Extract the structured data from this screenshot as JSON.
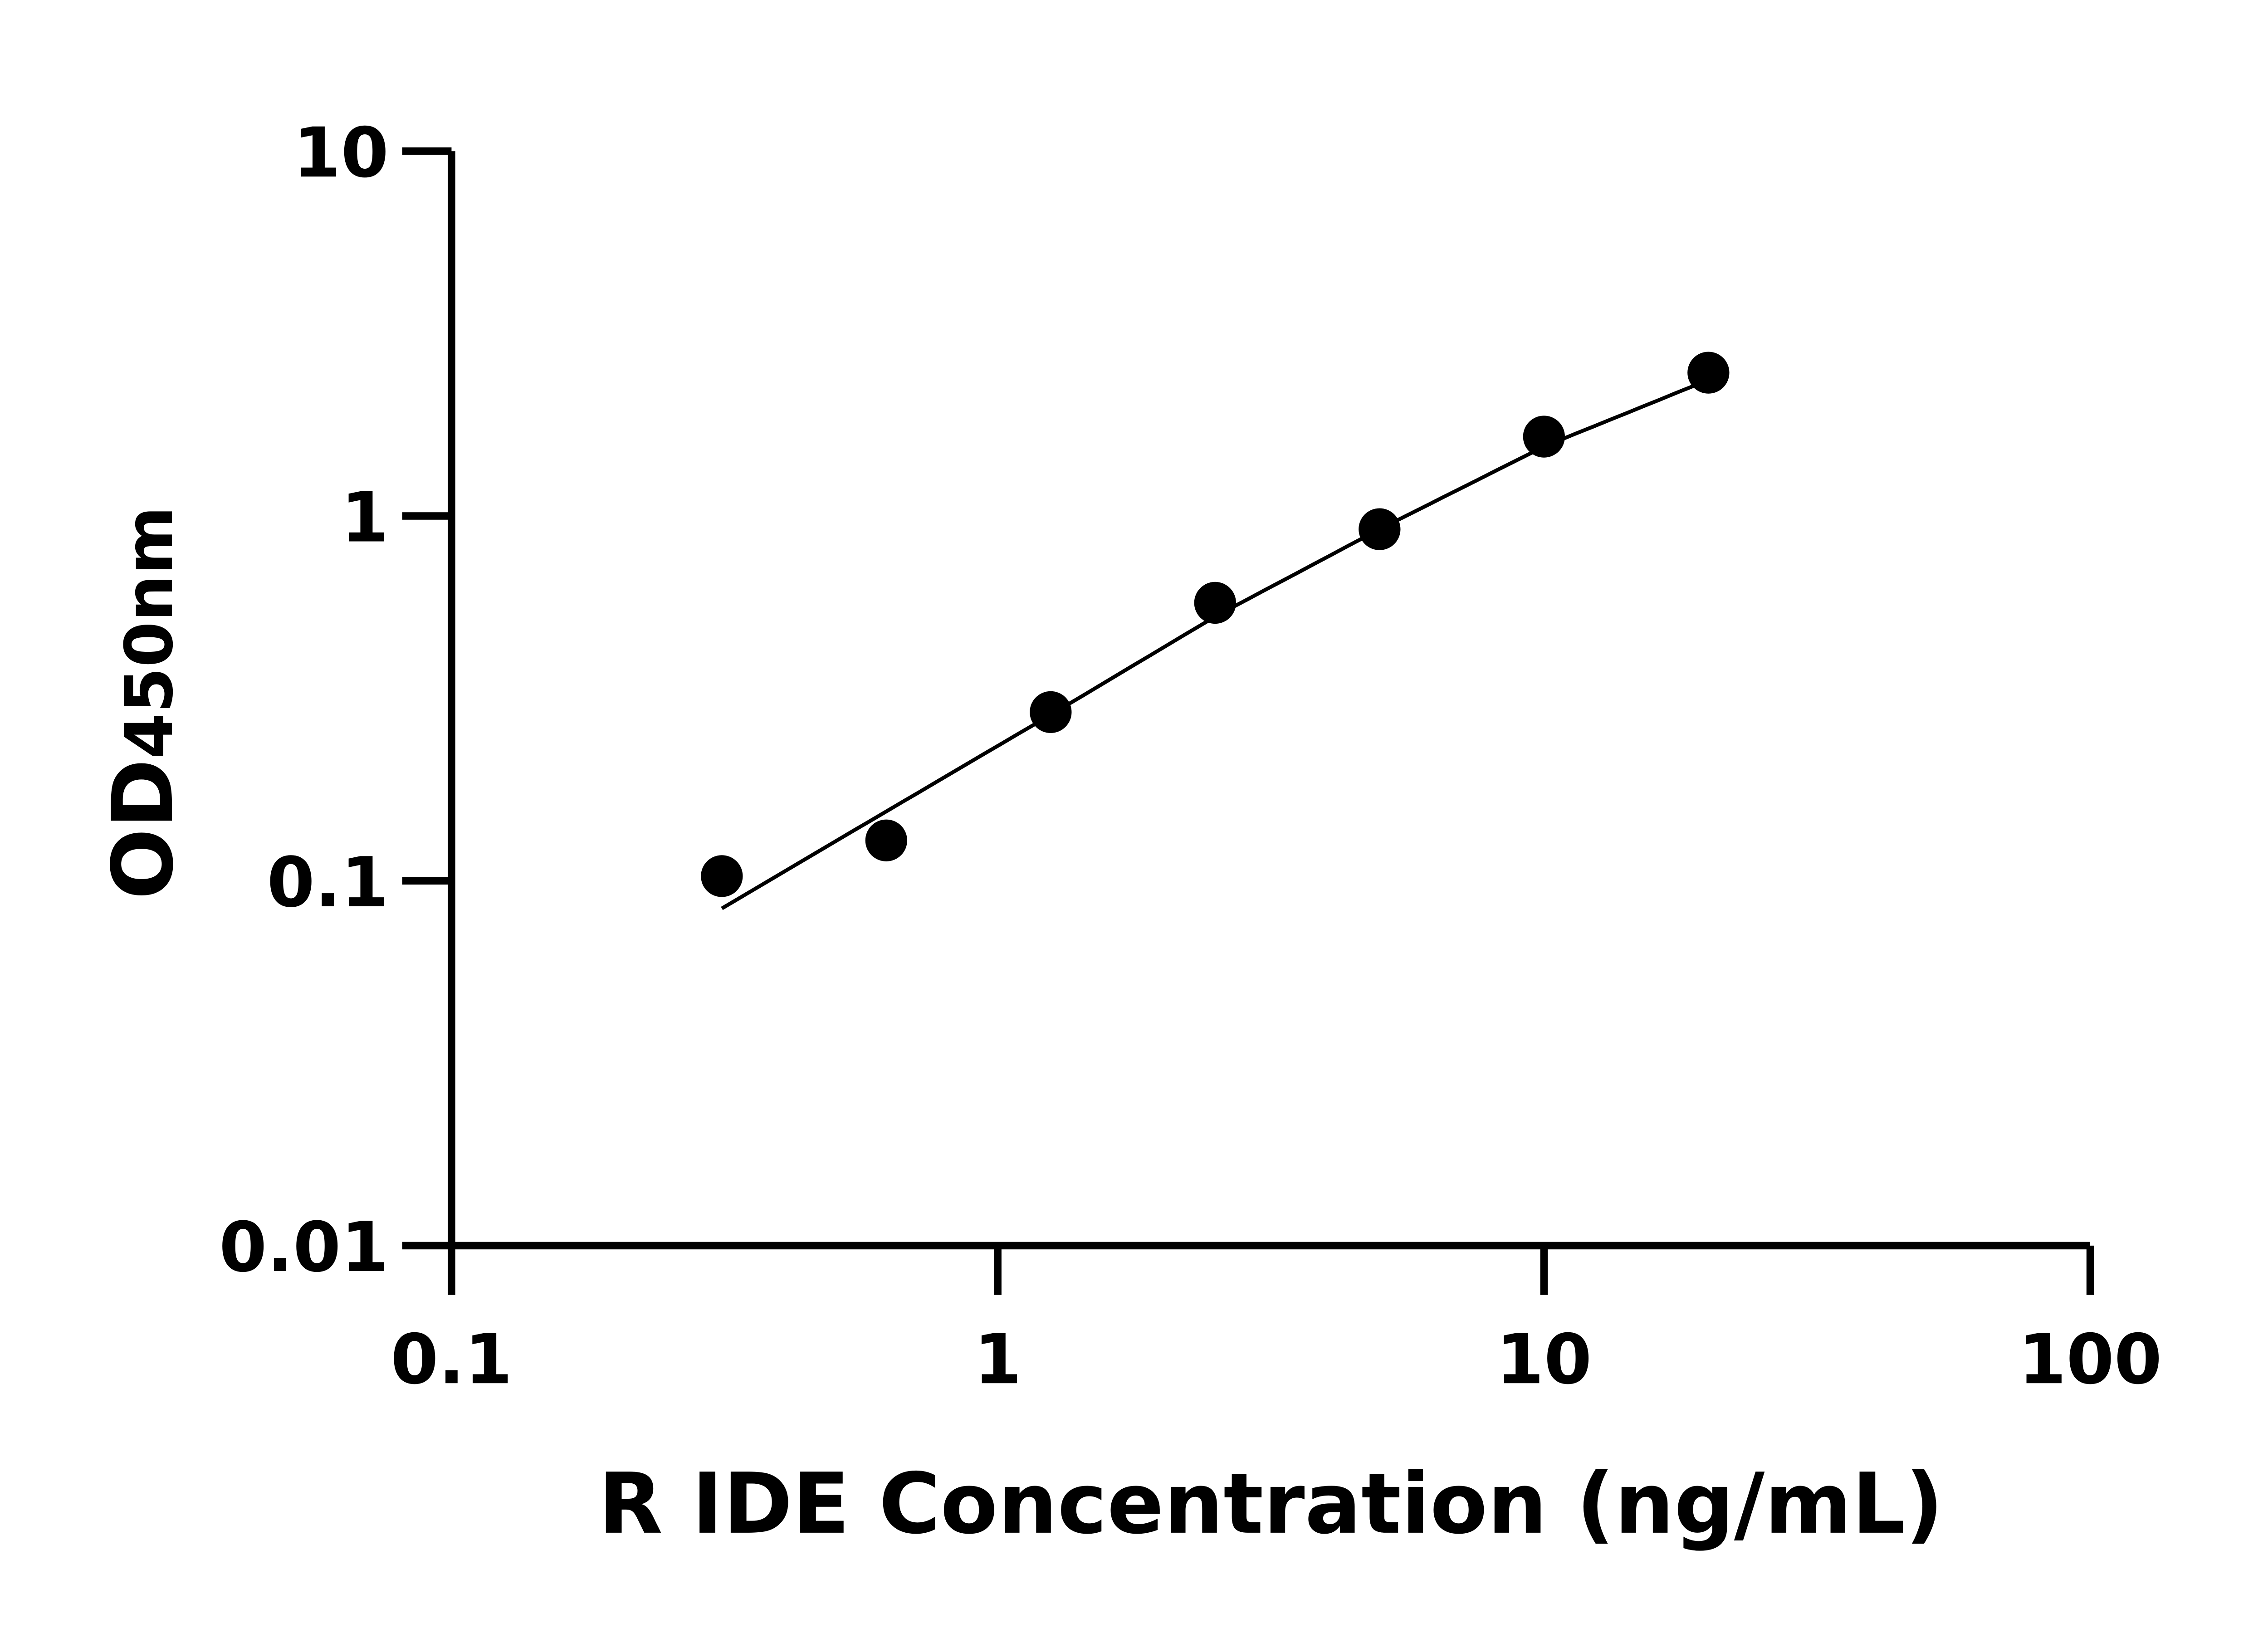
{
  "chart_data": {
    "type": "scatter",
    "title": "",
    "xlabel": "R IDE Concentration (ng/mL)",
    "ylabel_main": "OD",
    "ylabel_sub": "450nm",
    "xscale": "log",
    "yscale": "log",
    "xlim": [
      0.1,
      100
    ],
    "ylim": [
      0.01,
      10
    ],
    "xticks": [
      0.1,
      1,
      10,
      100
    ],
    "xtick_labels": [
      "0.1",
      "1",
      "10",
      "100"
    ],
    "yticks": [
      0.01,
      0.1,
      1,
      10
    ],
    "ytick_labels": [
      "0.01",
      "0.1",
      "1",
      "10"
    ],
    "grid": false,
    "legend": "none",
    "color": "#000000",
    "points": {
      "x": [
        0.3125,
        0.625,
        1.25,
        2.5,
        5,
        10,
        20
      ],
      "y": [
        0.103,
        0.129,
        0.29,
        0.578,
        0.92,
        1.65,
        2.47
      ]
    },
    "fit_curve": {
      "x": [
        0.3125,
        0.625,
        1.25,
        2.5,
        5,
        10,
        20
      ],
      "y": [
        0.084,
        0.155,
        0.285,
        0.53,
        0.92,
        1.55,
        2.36
      ]
    }
  }
}
